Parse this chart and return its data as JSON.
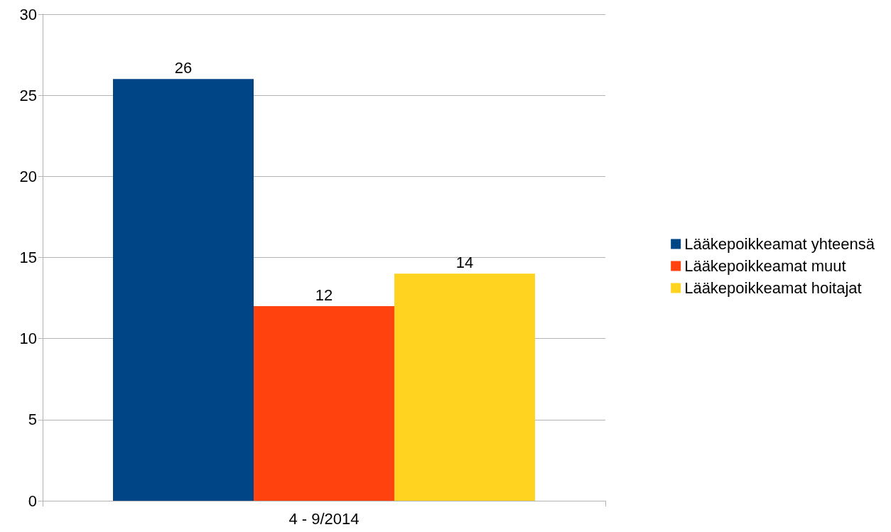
{
  "chart_data": {
    "type": "bar",
    "categories": [
      "4 - 9/2014"
    ],
    "series": [
      {
        "name": "Lääkepoikkeamat yhteensä",
        "color": "#004586",
        "values": [
          26
        ]
      },
      {
        "name": "Lääkepoikkeamat muut",
        "color": "#ff420e",
        "values": [
          12
        ]
      },
      {
        "name": "Lääkepoikkeamat hoitajat",
        "color": "#ffd320",
        "values": [
          14
        ]
      }
    ],
    "ylim": [
      0,
      30
    ],
    "yticks": [
      0,
      5,
      10,
      15,
      20,
      25,
      30
    ],
    "grid": "y",
    "legend": "right",
    "data_labels": true
  }
}
